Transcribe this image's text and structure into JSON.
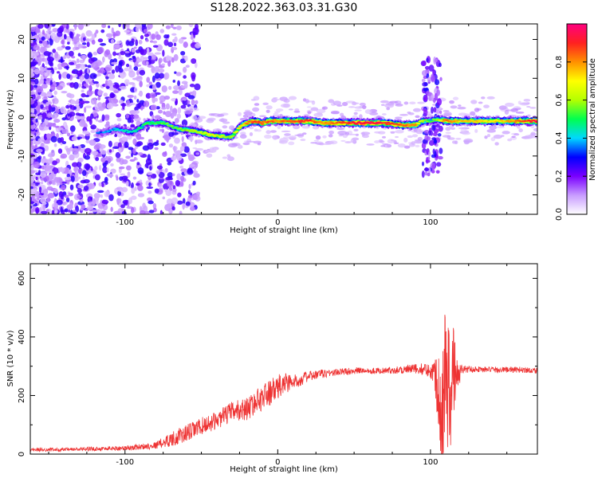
{
  "title": "S128.2022.363.03.31.G30",
  "chart_data": [
    {
      "type": "heatmap",
      "xlabel": "Height of straight line (km)",
      "ylabel": "Frequency (Hz)",
      "xlim": [
        -162,
        170
      ],
      "ylim": [
        -25,
        24
      ],
      "xticks": [
        "-100",
        "0",
        "100"
      ],
      "xtick_values": [
        -100,
        0,
        100
      ],
      "yticks": [
        "-20",
        "-10",
        "0",
        "10",
        "20"
      ],
      "ytick_values": [
        -20,
        -10,
        0,
        10,
        20
      ],
      "colorbar": {
        "label": "Normalized spectral amplitude",
        "range": [
          0,
          1
        ],
        "ticks": [
          "0.0",
          "0.2",
          "0.4",
          "0.6",
          "0.8"
        ],
        "tick_values": [
          0,
          0.2,
          0.4,
          0.6,
          0.8
        ],
        "colors": [
          "#ffffff",
          "#c89cff",
          "#7a00ff",
          "#0000ff",
          "#00d8ff",
          "#00ff50",
          "#b4ff00",
          "#ffff00",
          "#ff9000",
          "#ff2020",
          "#ff0080"
        ]
      },
      "ridge": {
        "x": [
          -115,
          -105,
          -95,
          -85,
          -75,
          -65,
          -55,
          -45,
          -35,
          -30,
          -25,
          -20,
          -15,
          -10,
          -5,
          0,
          10,
          20,
          30,
          40,
          50,
          60,
          70,
          80,
          90,
          95,
          100,
          105,
          110,
          120,
          130,
          140,
          150,
          160,
          170
        ],
        "y": [
          -4,
          -3,
          -4,
          -1.5,
          -1.5,
          -3,
          -3.5,
          -4.5,
          -5,
          -5,
          -2.5,
          -1.5,
          -1,
          -1.5,
          -1,
          -1,
          -1,
          -1,
          -1.5,
          -1.5,
          -1.5,
          -1.5,
          -1.5,
          -2,
          -2,
          -1,
          -1,
          -0.5,
          -1,
          -1,
          -1,
          -1,
          -1,
          -1,
          -1
        ],
        "amplitude": [
          0.35,
          0.4,
          0.45,
          0.5,
          0.55,
          0.55,
          0.6,
          0.65,
          0.6,
          0.6,
          0.7,
          0.8,
          0.9,
          0.85,
          0.85,
          0.8,
          0.85,
          0.9,
          0.8,
          0.85,
          0.9,
          0.95,
          0.9,
          0.85,
          0.8,
          0.6,
          0.5,
          0.6,
          0.85,
          0.75,
          0.75,
          0.7,
          0.75,
          0.85,
          0.95
        ]
      }
    },
    {
      "type": "line",
      "xlabel": "Height of straight line (km)",
      "ylabel": "SNR (10 * v/v)",
      "xlim": [
        -162,
        170
      ],
      "ylim": [
        0,
        650
      ],
      "xticks": [
        "-100",
        "0",
        "100"
      ],
      "xtick_values": [
        -100,
        0,
        100
      ],
      "yticks": [
        "0",
        "200",
        "400",
        "600"
      ],
      "ytick_values": [
        0,
        200,
        400,
        600
      ],
      "line_color": "#ee3333",
      "series": [
        {
          "x": [
            -162,
            -140,
            -120,
            -100,
            -90,
            -80,
            -75,
            -70,
            -60,
            -50,
            -40,
            -30,
            -20,
            -15,
            -10,
            -5,
            0,
            5,
            10,
            20,
            30,
            40,
            50,
            60,
            70,
            80,
            90,
            95,
            100,
            103,
            105,
            108,
            110,
            113,
            115,
            118,
            120,
            130,
            140,
            150,
            160,
            170
          ],
          "y": [
            15,
            15,
            18,
            20,
            25,
            30,
            40,
            50,
            70,
            95,
            115,
            145,
            155,
            175,
            195,
            210,
            225,
            245,
            245,
            265,
            275,
            280,
            285,
            285,
            285,
            288,
            290,
            290,
            285,
            270,
            240,
            150,
            330,
            160,
            300,
            250,
            290,
            290,
            288,
            288,
            288,
            285
          ],
          "spread": [
            6,
            6,
            7,
            8,
            10,
            12,
            18,
            25,
            30,
            30,
            30,
            35,
            40,
            40,
            45,
            45,
            45,
            40,
            25,
            18,
            15,
            12,
            12,
            10,
            10,
            14,
            18,
            20,
            25,
            60,
            150,
            220,
            260,
            220,
            170,
            60,
            15,
            10,
            10,
            10,
            10,
            10
          ]
        }
      ]
    }
  ]
}
